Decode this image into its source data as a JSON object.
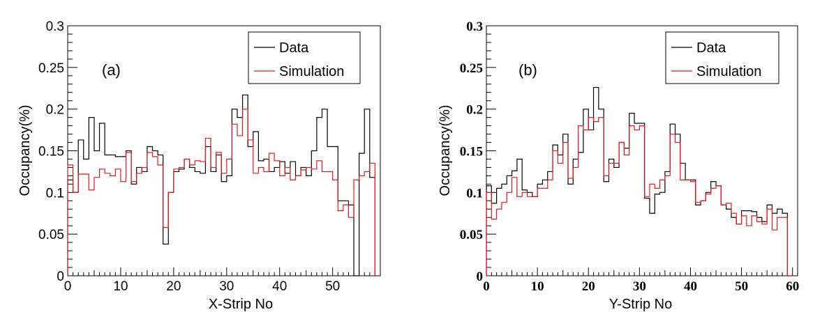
{
  "chart_data": [
    {
      "type": "step",
      "panel_label": "(a)",
      "xlabel": "X-Strip No",
      "ylabel": "Occupancy(%)",
      "xlim": [
        0,
        59
      ],
      "ylim": [
        0,
        0.3
      ],
      "x_ticks": [
        0,
        10,
        20,
        30,
        40,
        50
      ],
      "x_tick_labels": [
        "0",
        "10",
        "20",
        "30",
        "40",
        "50"
      ],
      "y_ticks": [
        0,
        0.05,
        0.1,
        0.15,
        0.2,
        0.25,
        0.3
      ],
      "y_tick_labels": [
        "0",
        "0.05",
        "0.1",
        "0.15",
        "0.2",
        "0.25",
        "0.3"
      ],
      "legend": {
        "placement": "top-right",
        "entries": [
          "Data",
          "Simulation"
        ]
      },
      "series": [
        {
          "name": "Data",
          "color": "#000000",
          "values": [
            0.115,
            0.1,
            0.163,
            0.14,
            0.19,
            0.15,
            0.183,
            0.145,
            0.145,
            0.143,
            0.143,
            0.15,
            0.11,
            0.13,
            0.125,
            0.155,
            0.15,
            0.145,
            0.038,
            0.1,
            0.125,
            0.128,
            0.14,
            0.13,
            0.125,
            0.123,
            0.155,
            0.125,
            0.145,
            0.113,
            0.12,
            0.2,
            0.19,
            0.217,
            0.155,
            0.173,
            0.138,
            0.14,
            0.125,
            0.13,
            0.137,
            0.123,
            0.137,
            0.12,
            0.13,
            0.12,
            0.15,
            0.19,
            0.2,
            0.155,
            0.155,
            0.09,
            0.09,
            0.085,
            0.0,
            0.147,
            0.2,
            0.118
          ]
        },
        {
          "name": "Simulation",
          "color": "#e0191f",
          "values": [
            0.133,
            0.1,
            0.122,
            0.122,
            0.103,
            0.118,
            0.128,
            0.123,
            0.12,
            0.128,
            0.113,
            0.148,
            0.113,
            0.123,
            0.13,
            0.148,
            0.143,
            0.133,
            0.058,
            0.1,
            0.128,
            0.13,
            0.14,
            0.133,
            0.138,
            0.137,
            0.165,
            0.13,
            0.148,
            0.123,
            0.14,
            0.182,
            0.168,
            0.2,
            0.163,
            0.123,
            0.13,
            0.125,
            0.147,
            0.138,
            0.12,
            0.13,
            0.115,
            0.12,
            0.127,
            0.13,
            0.128,
            0.138,
            0.125,
            0.125,
            0.115,
            0.078,
            0.085,
            0.07,
            0.115,
            0.12,
            0.125,
            0.135
          ]
        }
      ]
    },
    {
      "type": "step",
      "panel_label": "(b)",
      "xlabel": "Y-Strip No",
      "ylabel": "Occupancy(%)",
      "xlim": [
        0,
        61
      ],
      "ylim": [
        0,
        0.3
      ],
      "x_ticks": [
        0,
        10,
        20,
        30,
        40,
        50,
        60
      ],
      "x_tick_labels": [
        "0",
        "10",
        "20",
        "30",
        "40",
        "50",
        "60"
      ],
      "y_ticks": [
        0,
        0.05,
        0.1,
        0.15,
        0.2,
        0.25,
        0.3
      ],
      "y_tick_labels": [
        "0",
        "0.05",
        "0.1",
        "0.15",
        "0.2",
        "0.25",
        "0.3"
      ],
      "legend": {
        "placement": "top-right",
        "entries": [
          "Data",
          "Simulation"
        ]
      },
      "series": [
        {
          "name": "Data",
          "color": "#000000",
          "values": [
            0.108,
            0.087,
            0.105,
            0.11,
            0.12,
            0.126,
            0.14,
            0.103,
            0.1,
            0.095,
            0.11,
            0.115,
            0.125,
            0.157,
            0.145,
            0.17,
            0.11,
            0.14,
            0.148,
            0.2,
            0.175,
            0.226,
            0.2,
            0.113,
            0.14,
            0.13,
            0.16,
            0.153,
            0.195,
            0.183,
            0.183,
            0.093,
            0.075,
            0.098,
            0.1,
            0.125,
            0.182,
            0.17,
            0.135,
            0.115,
            0.115,
            0.085,
            0.09,
            0.1,
            0.113,
            0.108,
            0.085,
            0.08,
            0.07,
            0.062,
            0.078,
            0.078,
            0.077,
            0.07,
            0.065,
            0.085,
            0.075,
            0.08,
            0.075,
            0.0
          ]
        },
        {
          "name": "Simulation",
          "color": "#e0191f",
          "values": [
            0.1,
            0.068,
            0.08,
            0.088,
            0.1,
            0.118,
            0.095,
            0.1,
            0.095,
            0.095,
            0.105,
            0.105,
            0.115,
            0.15,
            0.135,
            0.16,
            0.117,
            0.13,
            0.18,
            0.175,
            0.19,
            0.185,
            0.19,
            0.12,
            0.135,
            0.135,
            0.16,
            0.145,
            0.18,
            0.175,
            0.18,
            0.095,
            0.11,
            0.105,
            0.115,
            0.12,
            0.17,
            0.16,
            0.115,
            0.115,
            0.113,
            0.088,
            0.09,
            0.098,
            0.105,
            0.108,
            0.085,
            0.087,
            0.075,
            0.062,
            0.072,
            0.06,
            0.072,
            0.065,
            0.062,
            0.08,
            0.055,
            0.07,
            0.07,
            0.0
          ]
        }
      ]
    }
  ]
}
